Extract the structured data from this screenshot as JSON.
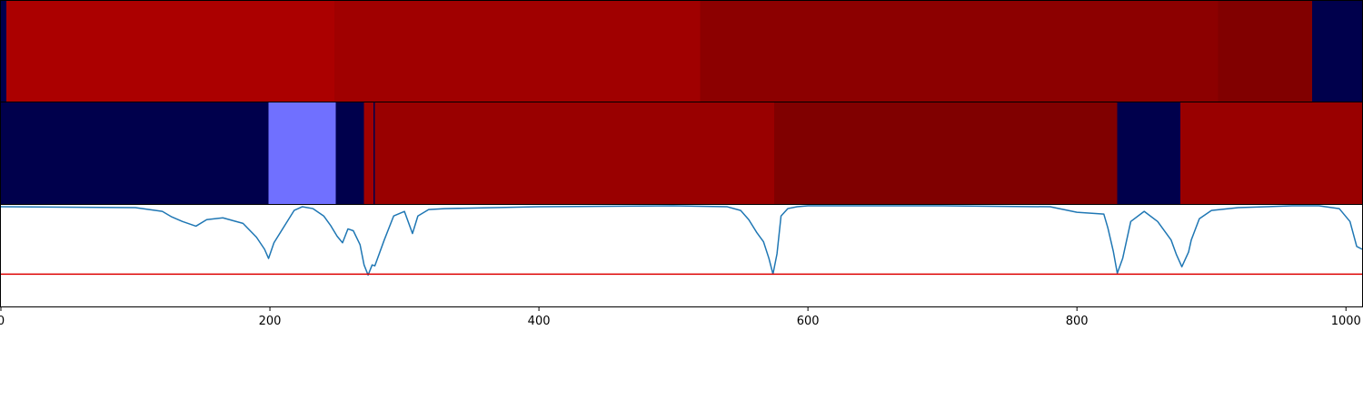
{
  "chart_data": [
    {
      "type": "heatmap",
      "colormap": "seismic",
      "xlim": [
        0,
        1012
      ],
      "segments": [
        {
          "x0": 0,
          "x1": 4,
          "color": "#00004c"
        },
        {
          "x0": 4,
          "x1": 248,
          "color": "#ab0000"
        },
        {
          "x0": 248,
          "x1": 520,
          "color": "#a00000"
        },
        {
          "x0": 520,
          "x1": 905,
          "color": "#8c0000"
        },
        {
          "x0": 905,
          "x1": 975,
          "color": "#810000"
        },
        {
          "x0": 975,
          "x1": 1012,
          "color": "#00004c"
        }
      ]
    },
    {
      "type": "heatmap",
      "colormap": "seismic",
      "xlim": [
        0,
        1012
      ],
      "segments": [
        {
          "x0": 0,
          "x1": 199,
          "color": "#00004c"
        },
        {
          "x0": 199,
          "x1": 249,
          "color": "#7070ff"
        },
        {
          "x0": 249,
          "x1": 270,
          "color": "#00004c"
        },
        {
          "x0": 270,
          "x1": 277,
          "color": "#a00000"
        },
        {
          "x0": 277,
          "x1": 278,
          "color": "#00004c"
        },
        {
          "x0": 278,
          "x1": 575,
          "color": "#990000"
        },
        {
          "x0": 575,
          "x1": 830,
          "color": "#800000"
        },
        {
          "x0": 830,
          "x1": 877,
          "color": "#00004c"
        },
        {
          "x0": 877,
          "x1": 1012,
          "color": "#990000"
        }
      ]
    },
    {
      "type": "line",
      "xlim": [
        0,
        1012
      ],
      "ylim": [
        -0.1,
        1.0
      ],
      "threshold": 0.25,
      "line_color": "#1f77b4",
      "threshold_color": "#dd0000",
      "xticks": [
        0,
        200,
        400,
        600,
        800,
        1000
      ],
      "x": [
        0,
        100,
        120,
        127,
        135,
        145,
        153,
        165,
        180,
        190,
        196,
        199,
        203,
        212,
        218,
        224,
        232,
        240,
        245,
        250,
        254,
        258,
        262,
        267,
        270,
        273,
        276,
        278,
        285,
        292,
        300,
        306,
        310,
        318,
        330,
        400,
        500,
        540,
        550,
        556,
        562,
        567,
        571,
        574,
        577,
        580,
        585,
        592,
        600,
        620,
        700,
        780,
        800,
        820,
        823,
        827,
        830,
        834,
        840,
        850,
        860,
        870,
        874,
        878,
        883,
        885,
        891,
        900,
        920,
        960,
        980,
        995,
        1003,
        1008,
        1012
      ],
      "y": [
        0.98,
        0.97,
        0.93,
        0.87,
        0.82,
        0.77,
        0.84,
        0.86,
        0.8,
        0.65,
        0.52,
        0.42,
        0.59,
        0.8,
        0.94,
        0.98,
        0.96,
        0.88,
        0.78,
        0.66,
        0.59,
        0.74,
        0.72,
        0.57,
        0.35,
        0.24,
        0.35,
        0.34,
        0.62,
        0.88,
        0.93,
        0.69,
        0.88,
        0.95,
        0.96,
        0.98,
        0.99,
        0.98,
        0.94,
        0.84,
        0.7,
        0.6,
        0.42,
        0.25,
        0.47,
        0.88,
        0.96,
        0.98,
        0.99,
        0.99,
        0.99,
        0.98,
        0.92,
        0.9,
        0.75,
        0.5,
        0.26,
        0.42,
        0.82,
        0.93,
        0.82,
        0.62,
        0.46,
        0.33,
        0.49,
        0.62,
        0.85,
        0.94,
        0.97,
        0.99,
        0.99,
        0.96,
        0.82,
        0.55,
        0.52
      ]
    }
  ]
}
